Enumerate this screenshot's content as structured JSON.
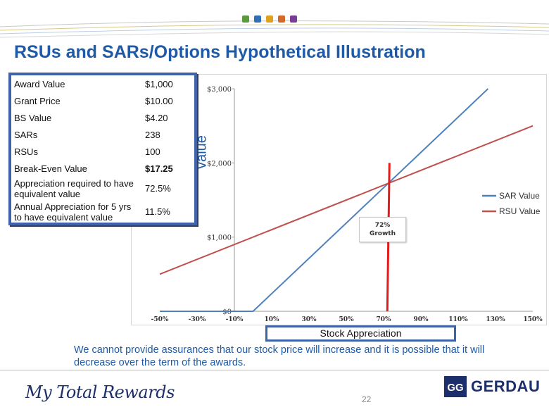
{
  "header": {
    "title": "RSUs and SARs/Options Hypothetical Illustration",
    "dot_colors": [
      "#5a9a3c",
      "#2e6fb5",
      "#e0a21e",
      "#d4692a",
      "#7a3d94"
    ]
  },
  "info_table": {
    "rows": [
      {
        "label": "Award Value",
        "value": "$1,000"
      },
      {
        "label": "Grant Price",
        "value": "$10.00"
      },
      {
        "label": "BS Value",
        "value": "$4.20"
      },
      {
        "label": "SARs",
        "value": "238"
      },
      {
        "label": "RSUs",
        "value": "100"
      },
      {
        "label": "Break-Even Value",
        "value": "$17.25"
      },
      {
        "label": "Appreciation required to have equivalent value",
        "value": "72.5%"
      },
      {
        "label": "Annual Appreciation for 5 yrs to have equivalent value",
        "value": "11.5%"
      }
    ]
  },
  "chart_data": {
    "type": "line",
    "title": "",
    "xlabel": "Stock Appreciation",
    "ylabel": "value",
    "x_ticks": [
      "-50%",
      "-30%",
      "-10%",
      "10%",
      "30%",
      "50%",
      "70%",
      "90%",
      "110%",
      "130%",
      "150%"
    ],
    "x_range": [
      -50,
      150
    ],
    "y_ticks": [
      "$0",
      "$1,000",
      "$2,000",
      "$3,000"
    ],
    "ylim": [
      0,
      3000
    ],
    "series": [
      {
        "name": "SAR Value",
        "color": "#4f81bd",
        "x": [
          -50,
          0,
          10,
          72.5,
          126
        ],
        "y": [
          0,
          0,
          238,
          1725,
          3000
        ]
      },
      {
        "name": "RSU Value",
        "color": "#c0504d",
        "x": [
          -50,
          72.5,
          150
        ],
        "y": [
          500,
          1725,
          2500
        ]
      }
    ],
    "vertical_marker": {
      "x": 72,
      "y_range": [
        0,
        2000
      ],
      "color": "#e31b1b"
    },
    "annotation": {
      "line1": "72%",
      "line2": "Growth"
    },
    "legend": [
      {
        "label": "SAR Value",
        "color": "#4f81bd"
      },
      {
        "label": "RSU Value",
        "color": "#c0504d"
      }
    ],
    "legend_position": "right"
  },
  "disclaimer": "We cannot provide assurances that our stock price will increase and it is possible that it will decrease over the term of the awards.",
  "footer": {
    "brand": "My Total Rewards",
    "page_number": "22",
    "logo_text": "GERDAU",
    "logo_mark_text": "GG"
  }
}
